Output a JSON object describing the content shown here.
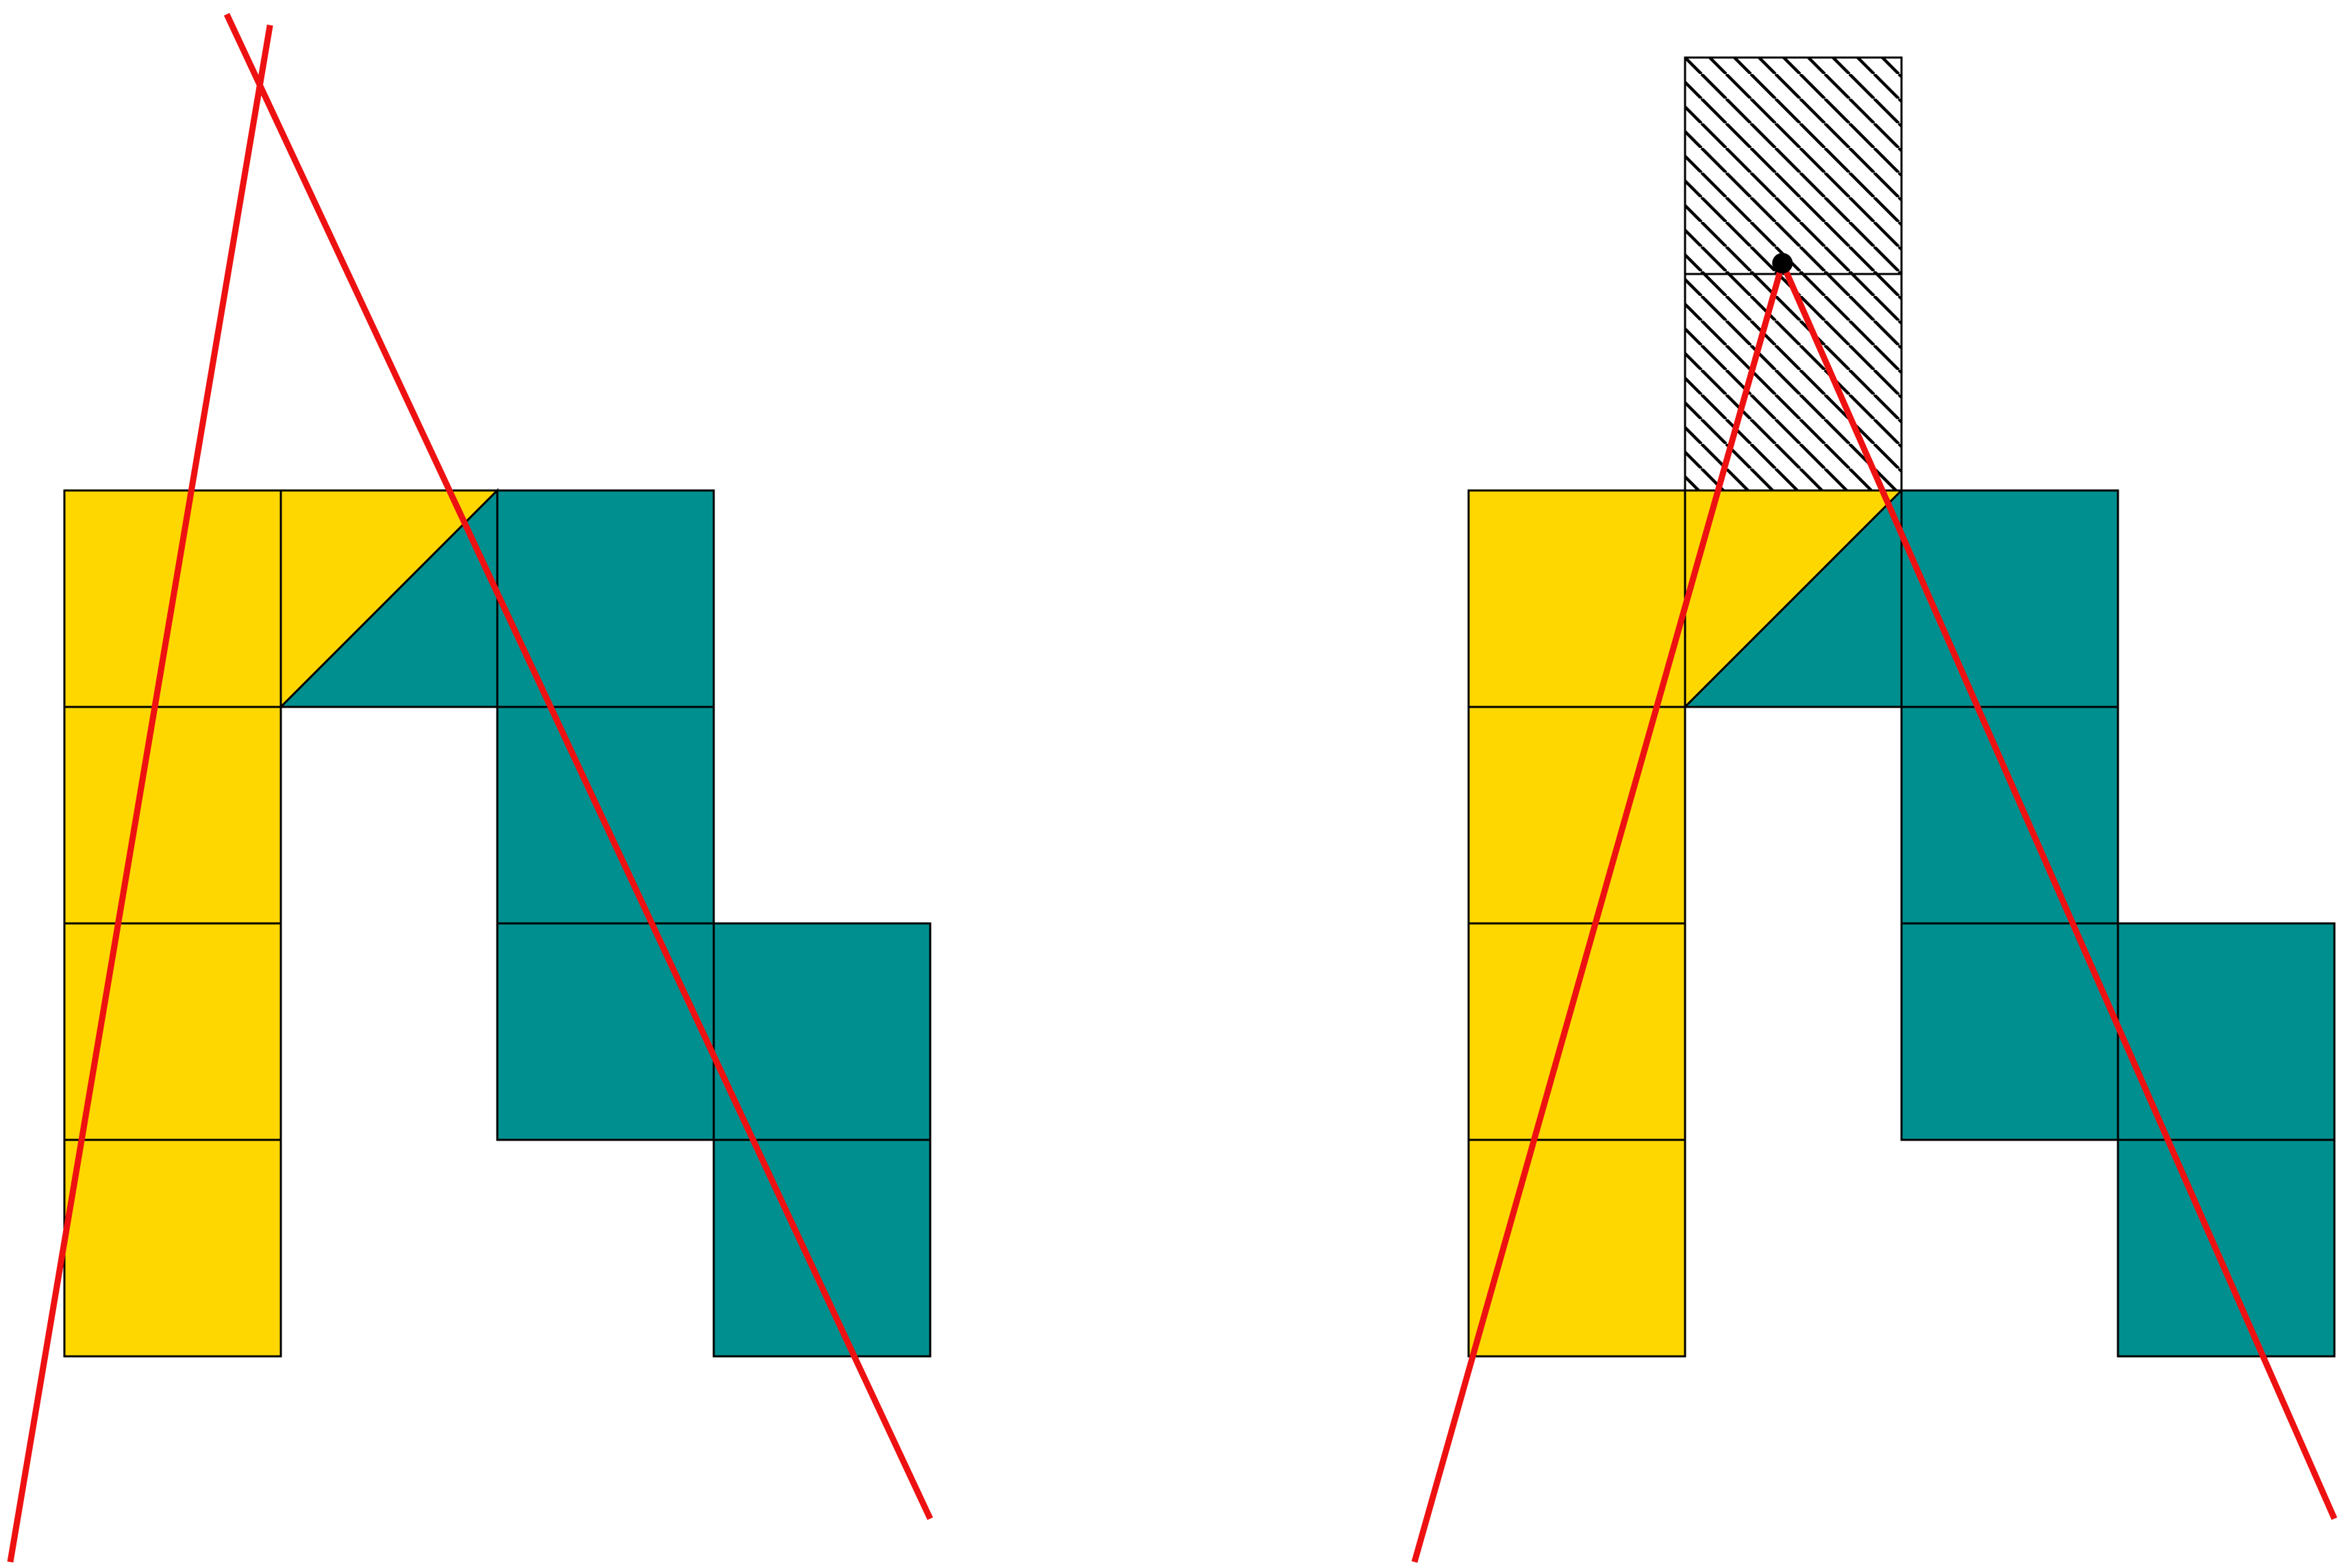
{
  "colors": {
    "background": "#FFFFFF",
    "yellow": "#FFD700",
    "teal": "#008F8F",
    "line": "#EE1111",
    "outline": "#000000",
    "hatch_fill": "#FFFFFF",
    "dot": "#000000"
  },
  "panels": [
    {
      "id": "left",
      "yellow_squares": [
        [
          0,
          0
        ],
        [
          0,
          1
        ],
        [
          0,
          2
        ],
        [
          0,
          3
        ]
      ],
      "teal_squares": [
        [
          2,
          0
        ],
        [
          2,
          1
        ],
        [
          2,
          2
        ],
        [
          3,
          2
        ],
        [
          3,
          3
        ]
      ],
      "split_square": {
        "cell": [
          1,
          0
        ],
        "upper_left_color": "yellow",
        "lower_right_color": "teal"
      },
      "hatched_squares": [],
      "dot": null,
      "lines": [
        {
          "from": [
            0.95,
            -2.15
          ],
          "to": [
            -0.25,
            4.95
          ]
        },
        {
          "from": [
            0.75,
            -2.2
          ],
          "to": [
            4.0,
            4.75
          ]
        }
      ]
    },
    {
      "id": "right",
      "yellow_squares": [
        [
          0,
          0
        ],
        [
          0,
          1
        ],
        [
          0,
          2
        ],
        [
          0,
          3
        ]
      ],
      "teal_squares": [
        [
          2,
          0
        ],
        [
          2,
          1
        ],
        [
          2,
          2
        ],
        [
          3,
          2
        ],
        [
          3,
          3
        ]
      ],
      "split_square": {
        "cell": [
          1,
          0
        ],
        "upper_left_color": "yellow",
        "lower_right_color": "teal"
      },
      "hatched_squares": [
        [
          1,
          -2
        ],
        [
          1,
          -1
        ]
      ],
      "dot": [
        1.45,
        -1.05
      ],
      "lines": [
        {
          "from": [
            1.45,
            -1.05
          ],
          "to": [
            -0.25,
            4.95
          ]
        },
        {
          "from": [
            1.45,
            -1.05
          ],
          "to": [
            4.0,
            4.75
          ]
        }
      ]
    }
  ]
}
